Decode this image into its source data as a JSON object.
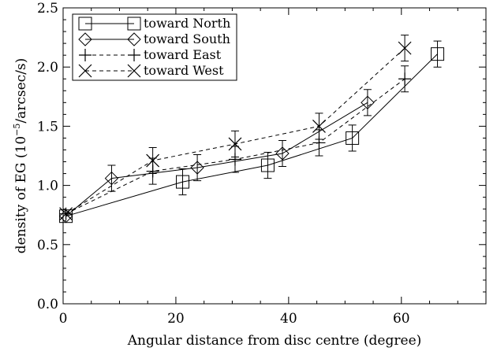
{
  "chart_data": {
    "type": "line",
    "title": "",
    "xlabel": "Angular distance from disc centre (degree)",
    "ylabel_parts": [
      "density of EG (10",
      "−5",
      "/arcsec/s)"
    ],
    "xlim": [
      0,
      75
    ],
    "ylim": [
      0.0,
      2.5
    ],
    "xticks": [
      0,
      20,
      40,
      60
    ],
    "yticks": [
      0.0,
      0.5,
      1.0,
      1.5,
      2.0,
      2.5
    ],
    "ytick_labels": [
      "0.0",
      "0.5",
      "1.0",
      "1.5",
      "2.0",
      "2.5"
    ],
    "legend_position": "top-left",
    "series": [
      {
        "name": "toward North",
        "marker": "square",
        "line": "solid",
        "x": [
          0.5,
          21.2,
          36.3,
          51.3,
          66.4
        ],
        "y": [
          0.74,
          1.03,
          1.17,
          1.4,
          2.11
        ],
        "err": [
          0,
          0.11,
          0.11,
          0.11,
          0.11
        ]
      },
      {
        "name": "toward South",
        "marker": "diamond",
        "line": "solid",
        "x": [
          0.5,
          8.6,
          23.8,
          38.9,
          54.0
        ],
        "y": [
          0.74,
          1.06,
          1.15,
          1.27,
          1.7
        ],
        "err": [
          0,
          0.11,
          0.11,
          0.11,
          0.11
        ]
      },
      {
        "name": "toward East",
        "marker": "plus",
        "line": "dashed",
        "x": [
          0.5,
          15.9,
          30.5,
          45.4,
          60.6
        ],
        "y": [
          0.76,
          1.12,
          1.22,
          1.36,
          1.9
        ],
        "err": [
          0,
          0.11,
          0.11,
          0.11,
          0.11
        ]
      },
      {
        "name": "toward West",
        "marker": "x",
        "line": "dashed",
        "x": [
          0.5,
          15.9,
          30.5,
          45.4,
          60.6
        ],
        "y": [
          0.76,
          1.21,
          1.35,
          1.5,
          2.16
        ],
        "err": [
          0,
          0.11,
          0.11,
          0.11,
          0.11
        ]
      }
    ]
  }
}
